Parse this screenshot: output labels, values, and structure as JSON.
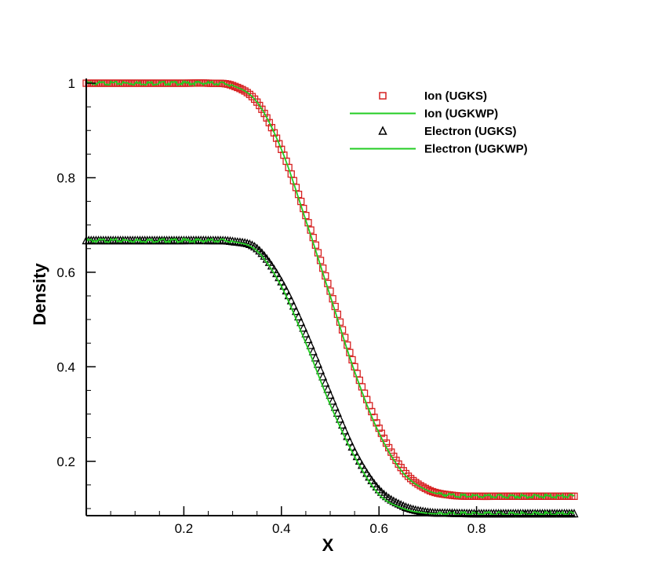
{
  "chart_data": {
    "type": "line",
    "xlabel": "X",
    "ylabel": "Density",
    "xlim": [
      0,
      1
    ],
    "ylim": [
      0.085,
      1.01
    ],
    "x_ticks": [
      0.2,
      0.4,
      0.6,
      0.8
    ],
    "y_ticks": [
      0.2,
      0.4,
      0.6,
      0.8,
      1
    ],
    "x_tick_labels": [
      "0.2",
      "0.4",
      "0.6",
      "0.8"
    ],
    "y_tick_labels": [
      "0.2",
      "0.4",
      "0.6",
      "0.8",
      "1"
    ],
    "grid": false,
    "legend_position": "top-right",
    "x": [
      0,
      0.05,
      0.1,
      0.15,
      0.2,
      0.25,
      0.3,
      0.35,
      0.4,
      0.45,
      0.5,
      0.55,
      0.6,
      0.65,
      0.7,
      0.75,
      0.8,
      0.85,
      0.9,
      0.95,
      1.0
    ],
    "series": [
      {
        "name": "Ion (UGKS)",
        "marker": "square",
        "color": "#d62020",
        "values": [
          1.0,
          1.0,
          1.0,
          1.0,
          1.0,
          1.0,
          0.995,
          0.96,
          0.86,
          0.72,
          0.56,
          0.4,
          0.27,
          0.18,
          0.14,
          0.128,
          0.126,
          0.126,
          0.126,
          0.126,
          0.126
        ]
      },
      {
        "name": "Ion (UGKWP)",
        "marker": "line",
        "color": "#22cc22",
        "values": [
          1.0,
          1.0,
          1.0,
          1.0,
          1.0,
          1.0,
          0.995,
          0.96,
          0.86,
          0.71,
          0.55,
          0.39,
          0.26,
          0.175,
          0.138,
          0.128,
          0.126,
          0.126,
          0.126,
          0.126,
          0.126
        ]
      },
      {
        "name": "Electron (UGKS)",
        "marker": "triangle",
        "color": "#000000",
        "values": [
          0.667,
          0.667,
          0.667,
          0.667,
          0.667,
          0.667,
          0.665,
          0.65,
          0.58,
          0.47,
          0.34,
          0.22,
          0.14,
          0.105,
          0.092,
          0.09,
          0.089,
          0.089,
          0.089,
          0.089,
          0.089
        ]
      },
      {
        "name": "Electron (UGKWP)",
        "marker": "line",
        "color": "#22cc22",
        "values": [
          0.667,
          0.667,
          0.667,
          0.667,
          0.667,
          0.667,
          0.665,
          0.645,
          0.57,
          0.45,
          0.32,
          0.21,
          0.13,
          0.1,
          0.09,
          0.089,
          0.089,
          0.089,
          0.089,
          0.089,
          0.089
        ]
      }
    ]
  }
}
